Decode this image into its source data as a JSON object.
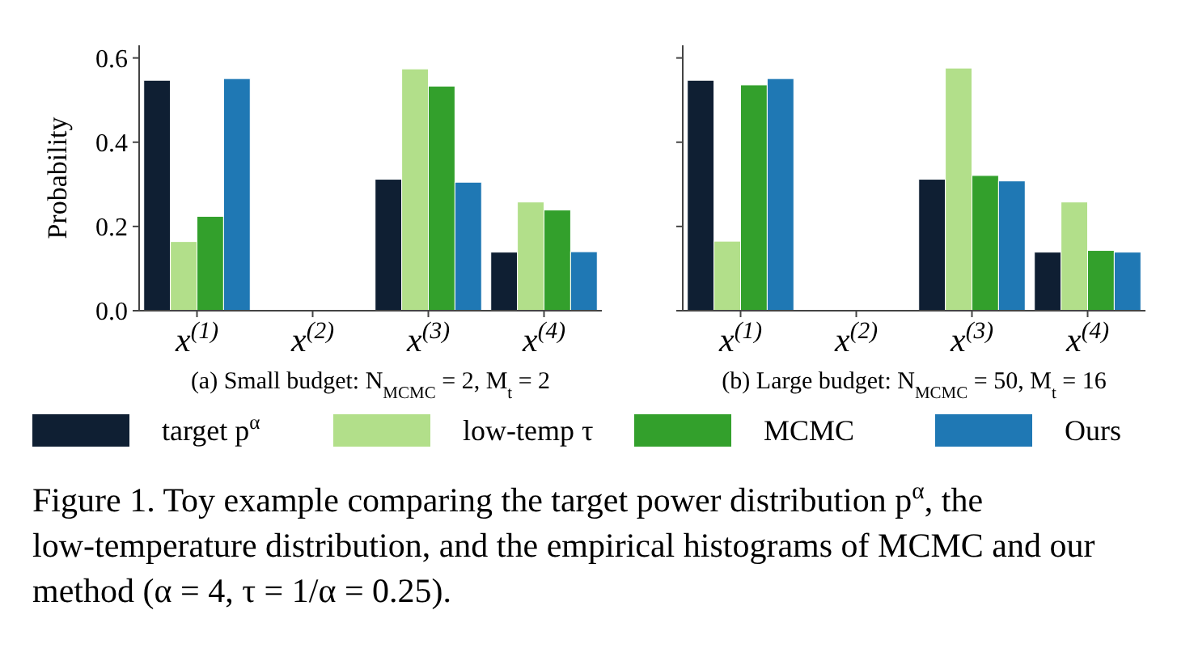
{
  "chart_data": [
    {
      "type": "bar",
      "xlabel": "(a) Small budget: N$_{MCMC}$ = 2, M$_{t}$ = 2",
      "ylabel": "Probability",
      "categories": [
        "x$^{(1)}$",
        "x$^{(2)}$",
        "x$^{(3)}$",
        "x$^{(4)}$"
      ],
      "series": [
        {
          "name": "target p$^{α}$",
          "color": "#0f1f33",
          "values": [
            0.547,
            0,
            0.312,
            0.139
          ]
        },
        {
          "name": "low-temp τ",
          "color": "#b2df8a",
          "values": [
            0.164,
            0,
            0.574,
            0.258
          ]
        },
        {
          "name": "MCMC",
          "color": "#33a02c",
          "values": [
            0.224,
            0,
            0.533,
            0.239
          ]
        },
        {
          "name": "Ours",
          "color": "#1f78b4",
          "values": [
            0.551,
            0,
            0.305,
            0.14
          ]
        }
      ],
      "ylim": [
        0,
        0.63
      ],
      "yticks": [
        {
          "value": 0,
          "label": "0.0"
        },
        {
          "value": 0.2,
          "label": "0.2"
        },
        {
          "value": 0.4,
          "label": "0.4"
        },
        {
          "value": 0.6,
          "label": "0.6"
        }
      ],
      "legend": "bottom",
      "annotations": [
        "Figure 1. Toy example comparing the target power distribution p$^{α}$, the low-temperature distribution, and the empirical histograms of MCMC and our method (α = 4, τ = 1/α = 0.25)."
      ]
    },
    {
      "type": "bar",
      "xlabel": "(b) Large budget: N$_{MCMC}$ = 50, M$_{t}$ = 16",
      "categories": [
        "x$^{(1)}$",
        "x$^{(2)}$",
        "x$^{(3)}$",
        "x$^{(4)}$"
      ],
      "series": [
        {
          "color": "#0f1f33",
          "values": [
            0.547,
            0,
            0.312,
            0.139
          ]
        },
        {
          "color": "#b2df8a",
          "values": [
            0.165,
            0,
            0.576,
            0.258
          ]
        },
        {
          "color": "#33a02c",
          "values": [
            0.536,
            0,
            0.321,
            0.143
          ]
        },
        {
          "color": "#1f78b4",
          "values": [
            0.551,
            0,
            0.308,
            0.139
          ]
        }
      ],
      "ylim": [
        0,
        0.63
      ],
      "yticks": [
        {
          "value": 0,
          "label": null
        },
        {
          "value": 0.2,
          "label": null
        },
        {
          "value": 0.4,
          "label": null
        },
        {
          "value": 0.6,
          "label": null
        }
      ],
      "tick_labels": "x"
    }
  ]
}
